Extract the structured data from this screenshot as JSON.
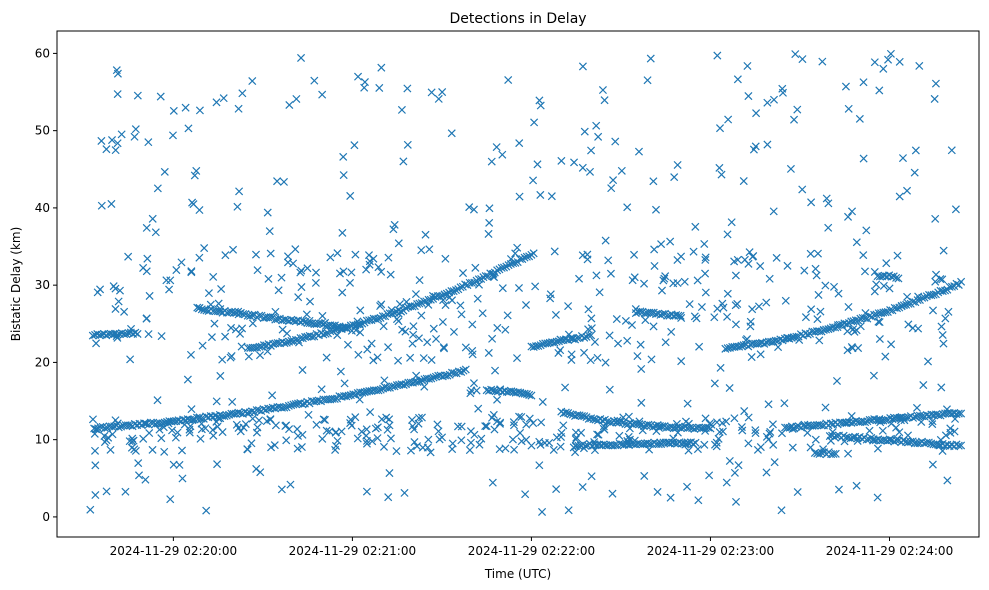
{
  "chart_data": {
    "type": "scatter",
    "title": "Detections in Delay",
    "xlabel": "Time (UTC)",
    "ylabel": "Bistatic Delay (km)",
    "marker": "x",
    "color": "#1f77b4",
    "grid": false,
    "xlim": [
      "2024-11-29 02:19:21",
      "2024-11-29 02:24:30"
    ],
    "ylim": [
      -2.6,
      62.9
    ],
    "x_ticks": [
      "2024-11-29 02:20:00",
      "2024-11-29 02:21:00",
      "2024-11-29 02:22:00",
      "2024-11-29 02:23:00",
      "2024-11-29 02:24:00"
    ],
    "y_ticks": [
      0,
      10,
      20,
      30,
      40,
      50,
      60
    ],
    "tracks": [
      {
        "t_start": "2024-11-29 02:19:34",
        "t_end": "2024-11-29 02:21:38",
        "delay_start": 11.5,
        "delay_end": 19.0,
        "shape": "rising-curve"
      },
      {
        "t_start": "2024-11-29 02:19:33",
        "t_end": "2024-11-29 02:19:48",
        "delay_start": 23.5,
        "delay_end": 23.8,
        "shape": "flat"
      },
      {
        "t_start": "2024-11-29 02:20:25",
        "t_end": "2024-11-29 02:22:00",
        "delay_start": 21.8,
        "delay_end": 34.0,
        "shape": "rising-curve"
      },
      {
        "t_start": "2024-11-29 02:20:08",
        "t_end": "2024-11-29 02:20:58",
        "delay_start": 27.0,
        "delay_end": 24.5,
        "shape": "falling"
      },
      {
        "t_start": "2024-11-29 02:21:45",
        "t_end": "2024-11-29 02:22:00",
        "delay_start": 16.5,
        "delay_end": 15.8,
        "shape": "falling"
      },
      {
        "t_start": "2024-11-29 02:22:00",
        "t_end": "2024-11-29 02:22:20",
        "delay_start": 22.0,
        "delay_end": 23.5,
        "shape": "rising"
      },
      {
        "t_start": "2024-11-29 02:22:10",
        "t_end": "2024-11-29 02:23:00",
        "delay_start": 13.5,
        "delay_end": 11.5,
        "shape": "falling-curve"
      },
      {
        "t_start": "2024-11-29 02:22:15",
        "t_end": "2024-11-29 02:22:55",
        "delay_start": 9.3,
        "delay_end": 9.6,
        "shape": "flat"
      },
      {
        "t_start": "2024-11-29 02:22:35",
        "t_end": "2024-11-29 02:22:50",
        "delay_start": 26.5,
        "delay_end": 26.0,
        "shape": "flat"
      },
      {
        "t_start": "2024-11-29 02:23:05",
        "t_end": "2024-11-29 02:24:24",
        "delay_start": 21.8,
        "delay_end": 30.3,
        "shape": "rising-curve"
      },
      {
        "t_start": "2024-11-29 02:23:25",
        "t_end": "2024-11-29 02:24:24",
        "delay_start": 11.5,
        "delay_end": 13.5,
        "shape": "rising"
      },
      {
        "t_start": "2024-11-29 02:23:40",
        "t_end": "2024-11-29 02:24:24",
        "delay_start": 10.5,
        "delay_end": 9.2,
        "shape": "falling"
      },
      {
        "t_start": "2024-11-29 02:23:35",
        "t_end": "2024-11-29 02:23:42",
        "delay_start": 8.3,
        "delay_end": 8.2,
        "shape": "flat"
      },
      {
        "t_start": "2024-11-29 02:23:56",
        "t_end": "2024-11-29 02:24:03",
        "delay_start": 31.3,
        "delay_end": 31.0,
        "shape": "flat"
      }
    ],
    "background_detections": {
      "t_start": "2024-11-29 02:19:32",
      "t_end": "2024-11-29 02:24:24",
      "delay_min": 0.5,
      "delay_max": 60.0,
      "approx_count": 900
    }
  }
}
